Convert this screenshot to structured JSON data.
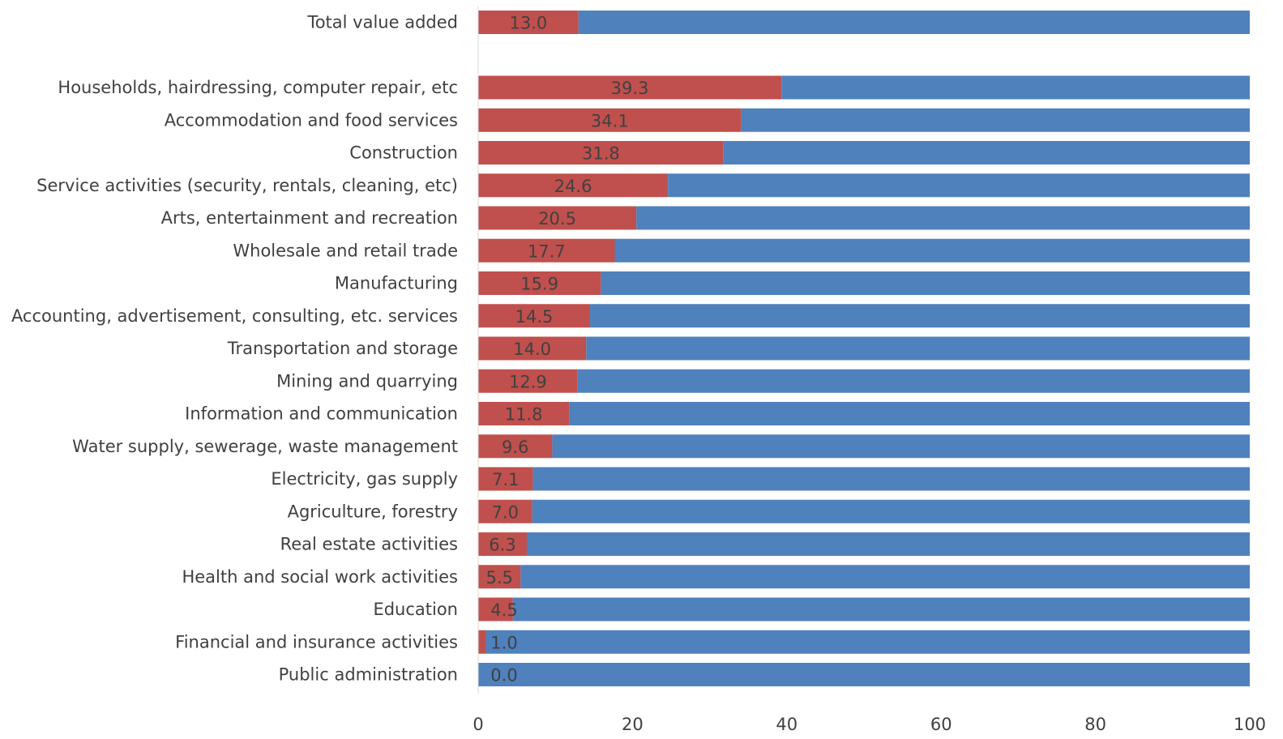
{
  "chart_data": {
    "type": "bar",
    "orientation": "horizontal",
    "stacked": true,
    "categories": [
      "Total value added",
      "",
      "Households, hairdressing, computer repair, etc",
      "Accommodation and food services",
      "Construction",
      "Service activities (security, rentals, cleaning, etc)",
      "Arts, entertainment and recreation",
      "Wholesale and retail trade",
      "Manufacturing",
      "Accounting, advertisement, consulting, etc. services",
      "Transportation and storage",
      "Mining and quarrying",
      "Information and communication",
      "Water supply, sewerage, waste management",
      "Electricity, gas supply",
      "Agriculture, forestry",
      "Real estate activities",
      "Health and social work activities",
      "Education",
      "Financial and insurance activities",
      "Public administration"
    ],
    "series": [
      {
        "color": "#c0504d",
        "values": [
          13.0,
          null,
          39.3,
          34.1,
          31.8,
          24.6,
          20.5,
          17.7,
          15.9,
          14.5,
          14.0,
          12.9,
          11.8,
          9.6,
          7.1,
          7.0,
          6.3,
          5.5,
          4.5,
          1.0,
          0.0
        ]
      },
      {
        "color": "#4f81bd",
        "values": [
          87.0,
          null,
          60.7,
          65.9,
          68.2,
          75.4,
          79.5,
          82.3,
          84.1,
          85.5,
          86.0,
          87.1,
          88.2,
          90.4,
          92.9,
          93.0,
          93.7,
          94.5,
          95.5,
          99.0,
          100.0
        ]
      }
    ],
    "data_labels": [
      "13.0",
      "",
      "39.3",
      "34.1",
      "31.8",
      "24.6",
      "20.5",
      "17.7",
      "15.9",
      "14.5",
      "14.0",
      "12.9",
      "11.8",
      "9.6",
      "7.1",
      "7.0",
      "6.3",
      "5.5",
      "4.5",
      "1.0",
      "0.0"
    ],
    "xlim": [
      0,
      100
    ],
    "xticks": [
      "0",
      "20",
      "40",
      "60",
      "80",
      "100"
    ],
    "grid": false,
    "legend": "none",
    "title": "",
    "xlabel": "",
    "ylabel": ""
  }
}
